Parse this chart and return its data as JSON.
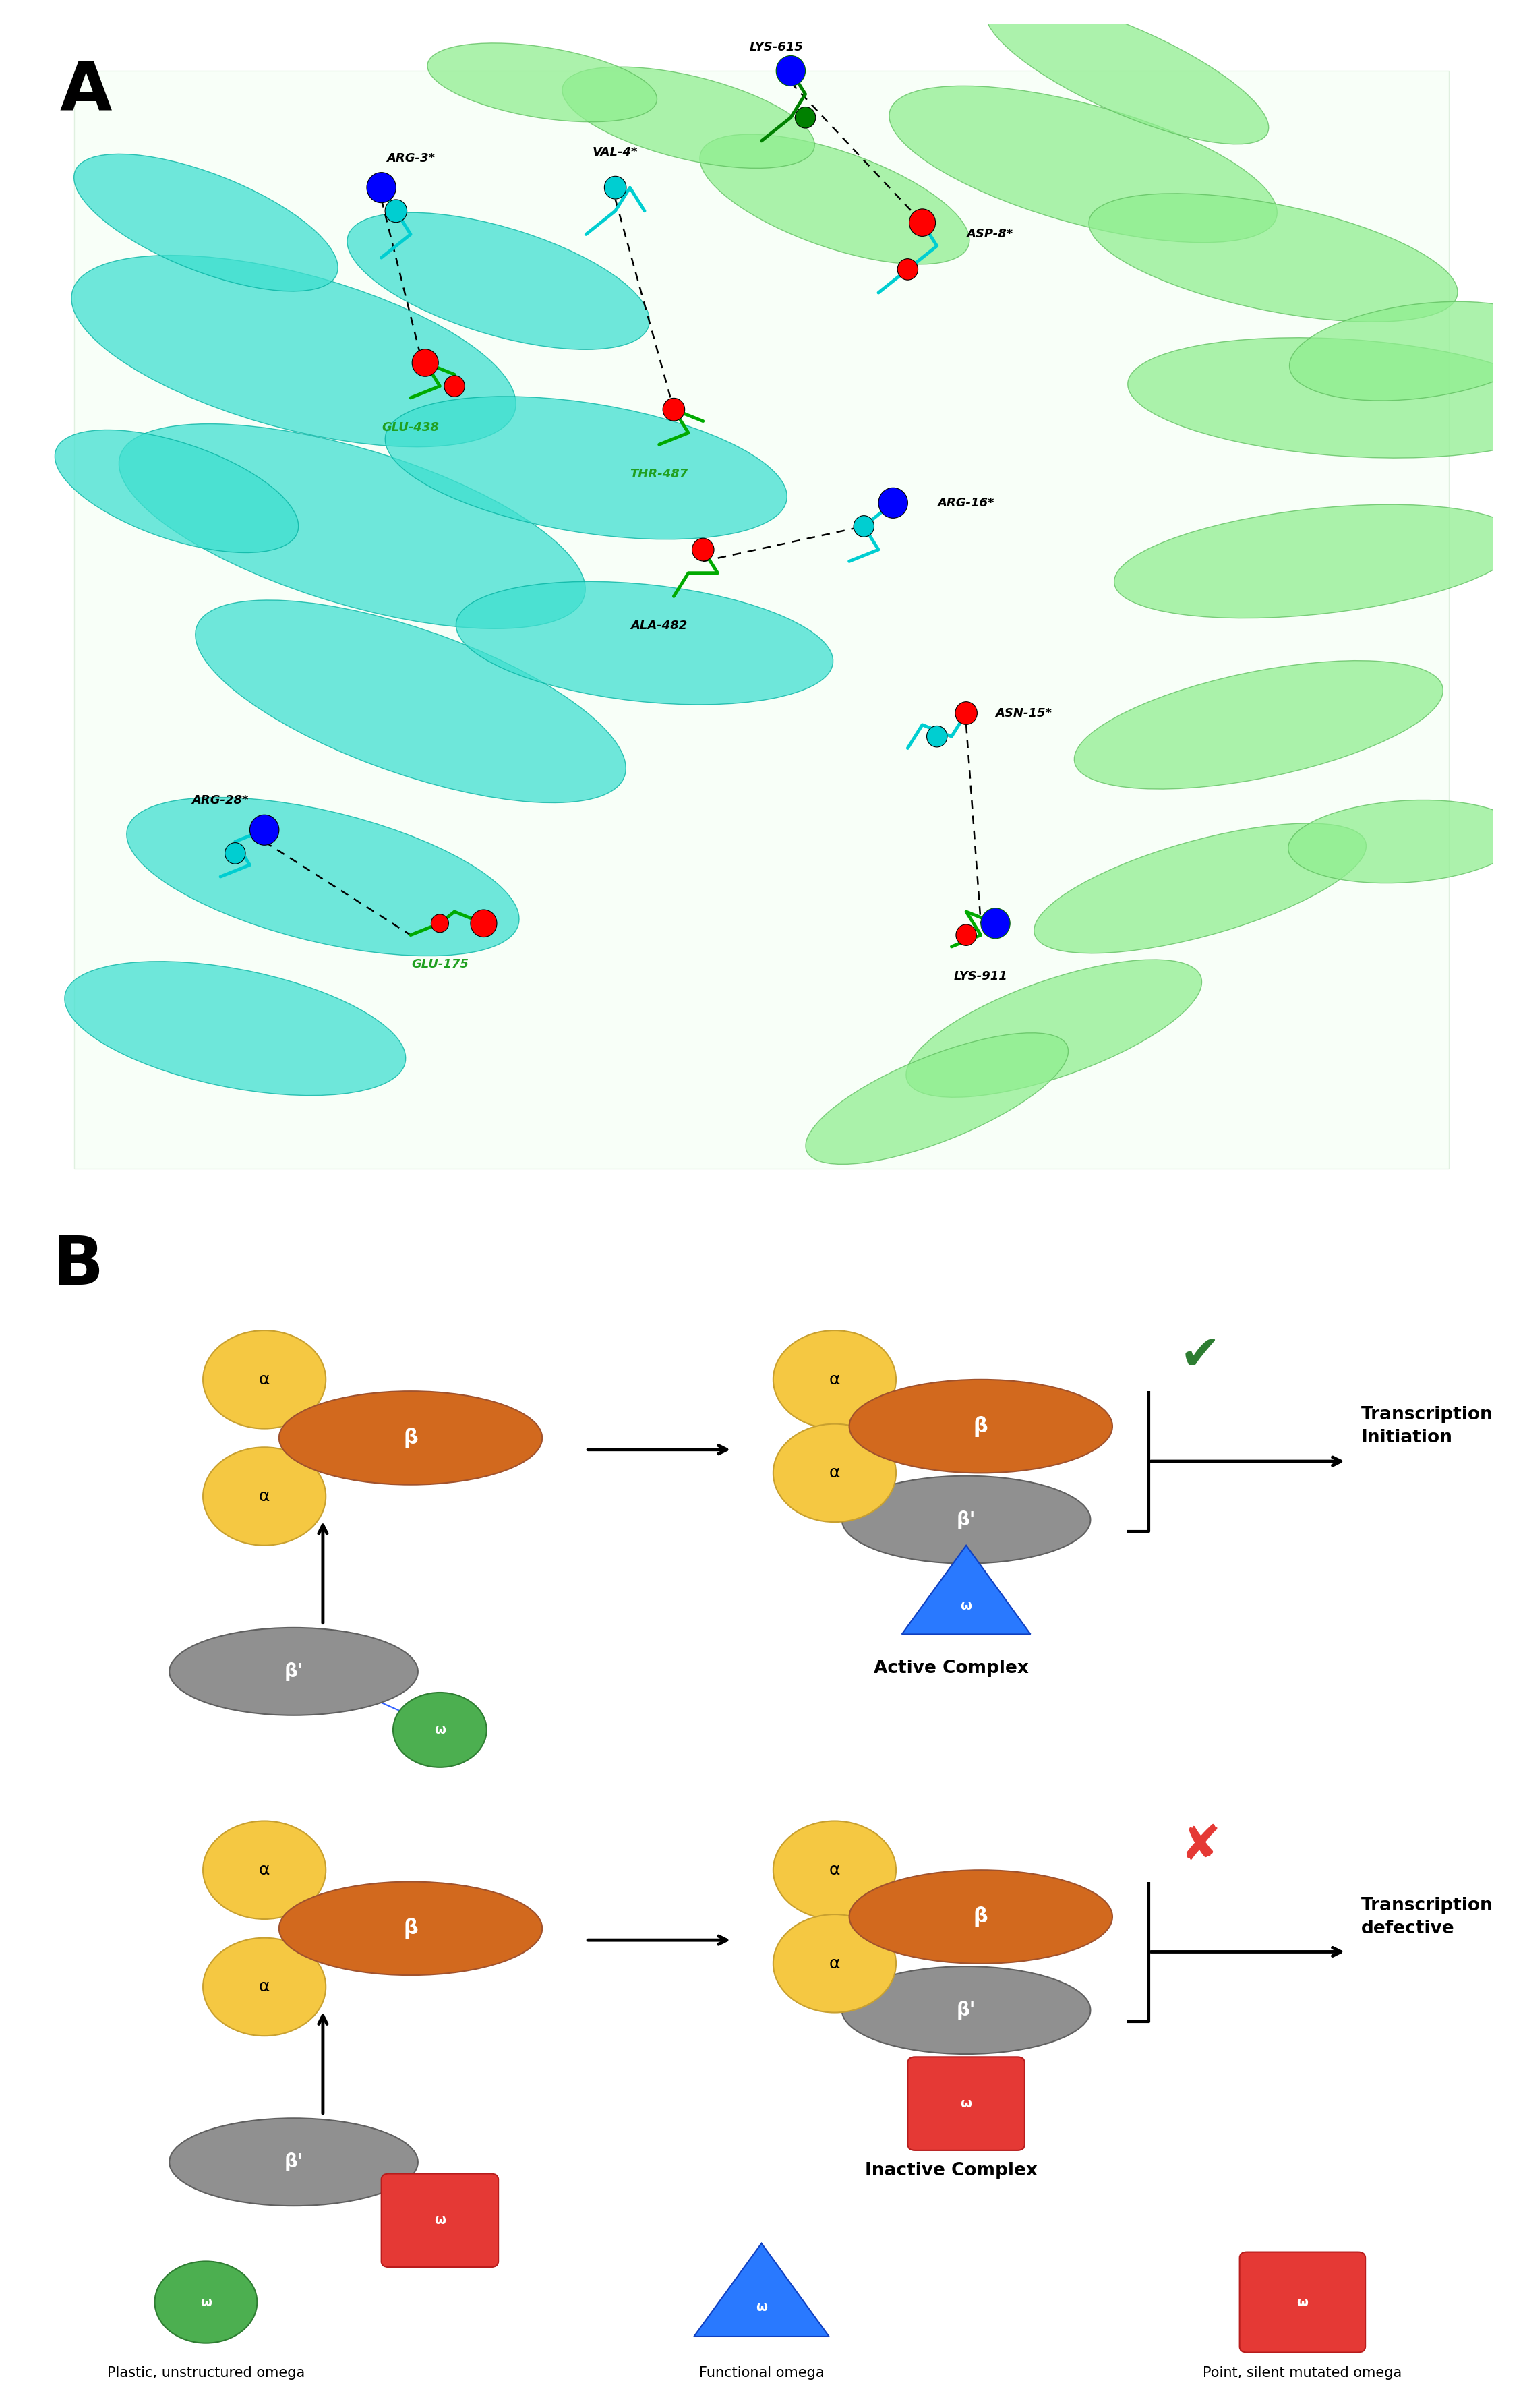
{
  "panel_a_label": "A",
  "panel_b_label": "B",
  "alpha_color": "#F5C842",
  "alpha_stroke": "#C8A030",
  "beta_color": "#D2691E",
  "beta_stroke": "#A0522D",
  "beta_prime_color": "#909090",
  "beta_prime_stroke": "#606060",
  "omega_green_color": "#4CAF50",
  "omega_green_stroke": "#2E7D32",
  "omega_blue_color": "#2979FF",
  "omega_red_color": "#E53935",
  "check_color": "#2E7D32",
  "cross_color": "#E53935",
  "text_active": "Active Complex",
  "text_inactive": "Inactive Complex",
  "text_transcription_init": "Transcription\nInitiation",
  "text_transcription_def": "Transcription\ndefective",
  "legend_green": "Plastic, unstructured omega",
  "legend_blue": "Functional omega",
  "legend_red": "Point, silent mutated omega"
}
